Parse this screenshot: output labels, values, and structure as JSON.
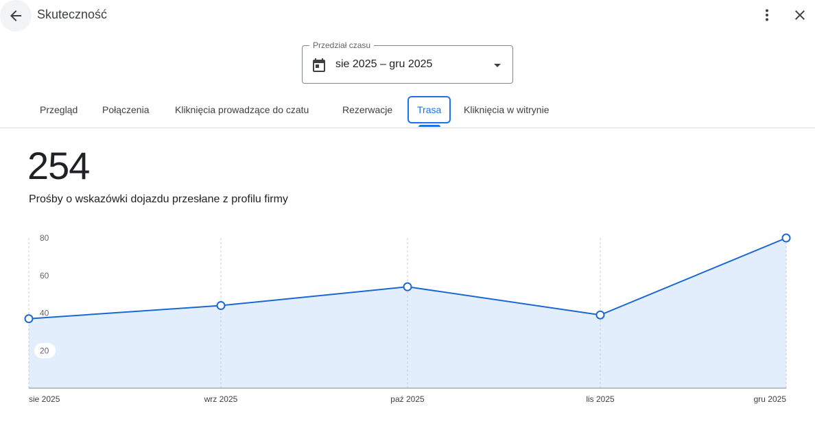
{
  "header": {
    "title": "Skuteczność",
    "back_icon": "arrow-back-icon",
    "menu_icon": "more-vert-icon",
    "close_icon": "close-icon"
  },
  "date_range": {
    "legend": "Przedział czasu",
    "value": "sie 2025 – gru 2025",
    "icon": "calendar-icon"
  },
  "tabs": [
    {
      "label": "Przegląd"
    },
    {
      "label": "Połączenia"
    },
    {
      "label": "Kliknięcia prowadzące do czatu"
    },
    {
      "label": "Rezerwacje"
    },
    {
      "label": "Trasa"
    },
    {
      "label": "Kliknięcia w witrynie"
    }
  ],
  "active_tab": "Trasa",
  "metric": {
    "value": "254",
    "description": "Prośby o wskazówki dojazdu przesłane z profilu firmy"
  },
  "colors": {
    "accent": "#1a73e8",
    "line": "#1967d2",
    "area": "#e3eefc"
  },
  "chart_data": {
    "type": "area",
    "categories": [
      "sie 2025",
      "wrz 2025",
      "paź 2025",
      "lis 2025",
      "gru 2025"
    ],
    "values": [
      37,
      44,
      54,
      39,
      80
    ],
    "yticks": [
      20,
      40,
      60,
      80
    ],
    "ylim": [
      0,
      80
    ],
    "grid": "vertical dashed",
    "markers": "hollow circles"
  }
}
